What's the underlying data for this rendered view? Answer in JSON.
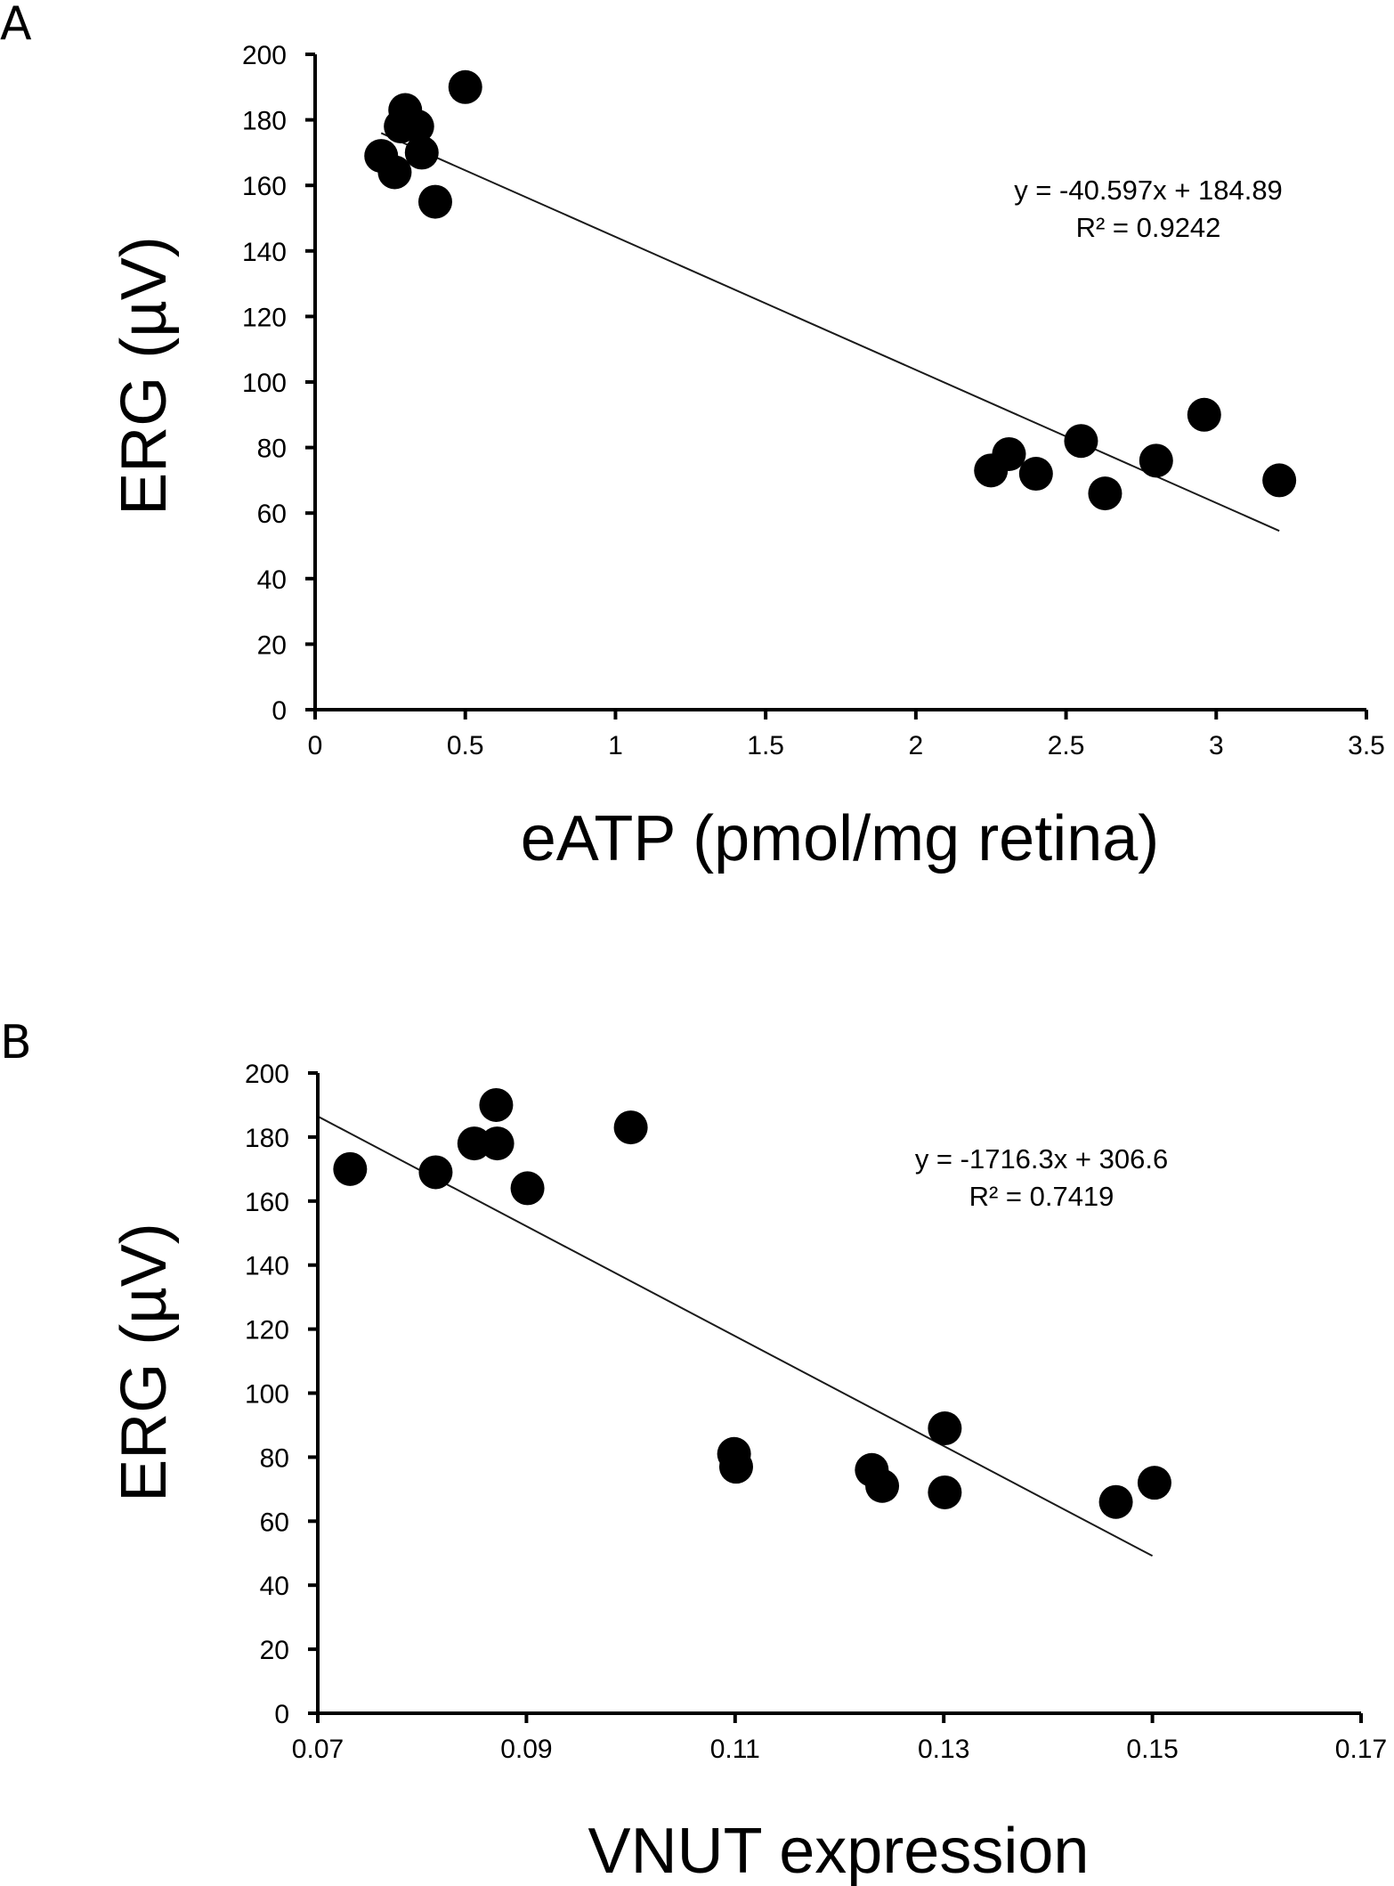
{
  "chart_data": [
    {
      "panel": "A",
      "type": "scatter",
      "title": "",
      "xlabel": "eATP (pmol/mg retina)",
      "ylabel": "ERG (µV)",
      "xlim": [
        0,
        3.5
      ],
      "ylim": [
        0,
        200
      ],
      "xticks": [
        0,
        0.5,
        1,
        1.5,
        2,
        2.5,
        3,
        3.5
      ],
      "xtick_labels": [
        "0",
        "0.5",
        "1",
        "1.5",
        "2",
        "2.5",
        "3",
        "3.5"
      ],
      "yticks": [
        0,
        20,
        40,
        60,
        80,
        100,
        120,
        140,
        160,
        180,
        200
      ],
      "ytick_labels": [
        "0",
        "20",
        "40",
        "60",
        "80",
        "100",
        "120",
        "140",
        "160",
        "180",
        "200"
      ],
      "grid": false,
      "points": [
        {
          "x": 0.5,
          "y": 190
        },
        {
          "x": 0.3,
          "y": 183
        },
        {
          "x": 0.34,
          "y": 178
        },
        {
          "x": 0.285,
          "y": 178
        },
        {
          "x": 0.22,
          "y": 169
        },
        {
          "x": 0.265,
          "y": 164
        },
        {
          "x": 0.355,
          "y": 170
        },
        {
          "x": 0.4,
          "y": 155
        },
        {
          "x": 2.25,
          "y": 73
        },
        {
          "x": 2.31,
          "y": 78
        },
        {
          "x": 2.4,
          "y": 72
        },
        {
          "x": 2.55,
          "y": 82
        },
        {
          "x": 2.63,
          "y": 66
        },
        {
          "x": 2.8,
          "y": 76
        },
        {
          "x": 2.96,
          "y": 90
        },
        {
          "x": 3.21,
          "y": 70
        }
      ],
      "trendline": {
        "slope": -40.597,
        "intercept": 184.89,
        "x_range": [
          0.22,
          3.21
        ]
      },
      "annotation": {
        "equation": "y = -40.597x + 184.89",
        "r2": "R² = 0.9242"
      }
    },
    {
      "panel": "B",
      "type": "scatter",
      "title": "",
      "xlabel": "VNUT expression",
      "ylabel": "ERG (µV)",
      "xlim": [
        0.07,
        0.17
      ],
      "ylim": [
        0,
        200
      ],
      "xticks": [
        0.07,
        0.09,
        0.11,
        0.13,
        0.15,
        0.17
      ],
      "xtick_labels": [
        "0.07",
        "0.09",
        "0.11",
        "0.13",
        "0.15",
        "0.17"
      ],
      "yticks": [
        0,
        20,
        40,
        60,
        80,
        100,
        120,
        140,
        160,
        180,
        200
      ],
      "ytick_labels": [
        "0",
        "20",
        "40",
        "60",
        "80",
        "100",
        "120",
        "140",
        "160",
        "180",
        "200"
      ],
      "grid": false,
      "points": [
        {
          "x": 0.0731,
          "y": 170
        },
        {
          "x": 0.0813,
          "y": 169
        },
        {
          "x": 0.085,
          "y": 178
        },
        {
          "x": 0.0872,
          "y": 178
        },
        {
          "x": 0.0871,
          "y": 190
        },
        {
          "x": 0.0901,
          "y": 164
        },
        {
          "x": 0.1,
          "y": 183
        },
        {
          "x": 0.1099,
          "y": 81
        },
        {
          "x": 0.1101,
          "y": 77
        },
        {
          "x": 0.1231,
          "y": 76
        },
        {
          "x": 0.1241,
          "y": 71
        },
        {
          "x": 0.1301,
          "y": 89
        },
        {
          "x": 0.1301,
          "y": 69
        },
        {
          "x": 0.1465,
          "y": 66
        },
        {
          "x": 0.1502,
          "y": 72
        }
      ],
      "trendline": {
        "slope": -1716.3,
        "intercept": 306.6,
        "x_range": [
          0.07,
          0.15
        ]
      },
      "annotation": {
        "equation": "y = -1716.3x + 306.6",
        "r2": "R² = 0.7419"
      }
    }
  ]
}
